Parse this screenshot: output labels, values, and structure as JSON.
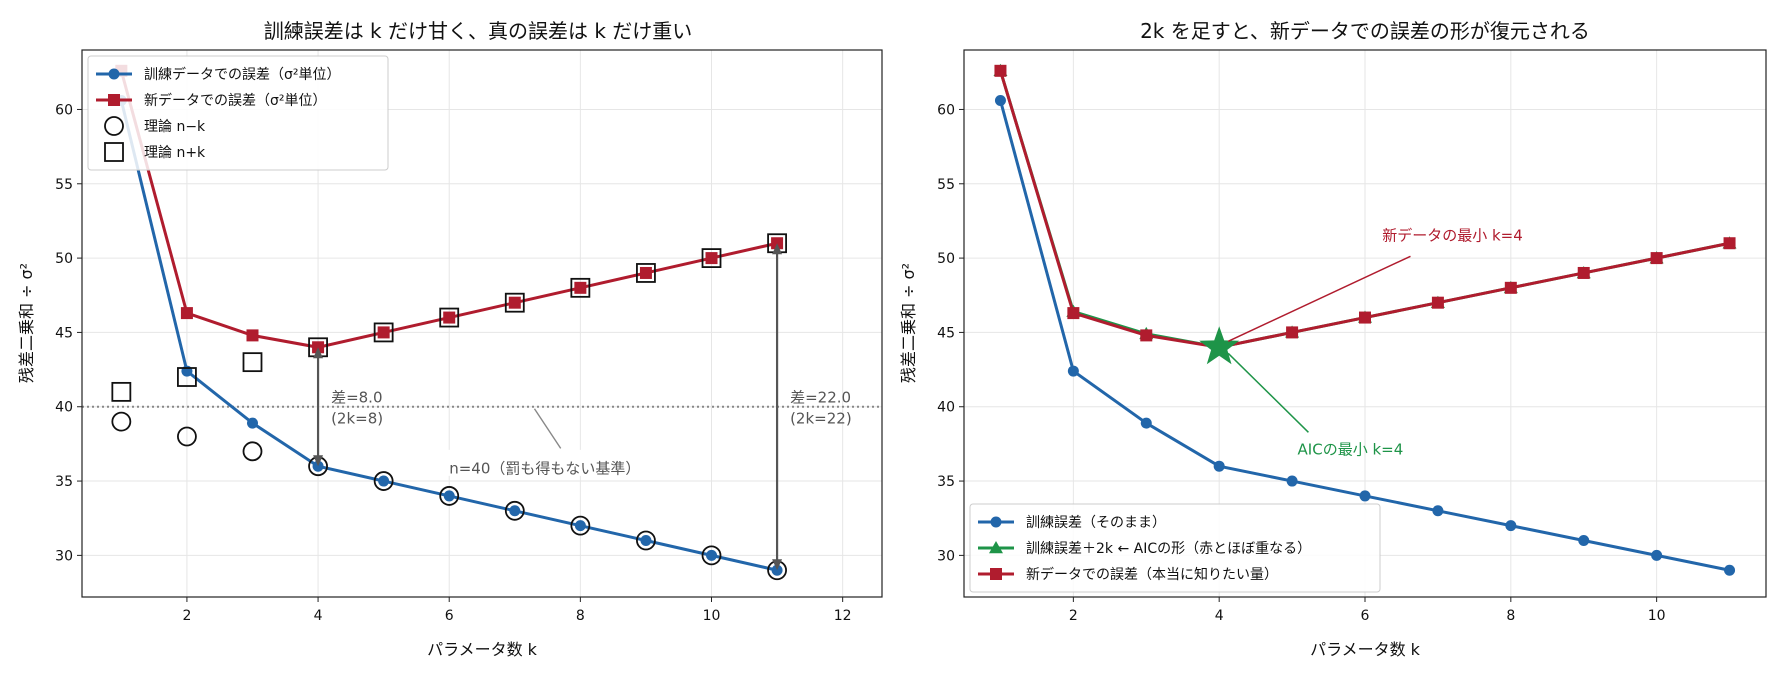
{
  "chart_data": [
    {
      "type": "line",
      "title": "訓練誤差は k だけ甘く、真の誤差は k だけ重い",
      "xlabel": "パラメータ数 k",
      "ylabel": "残差二乗和 ÷ σ²",
      "xlim": [
        0.4,
        12.6
      ],
      "ylim": [
        27.2,
        64.0
      ],
      "xticks": [
        2,
        4,
        6,
        8,
        10,
        12
      ],
      "yticks": [
        30,
        35,
        40,
        45,
        50,
        55,
        60
      ],
      "grid": true,
      "legend_position": "top-left",
      "x": [
        1,
        2,
        3,
        4,
        5,
        6,
        7,
        8,
        9,
        10,
        11
      ],
      "series": [
        {
          "name": "訓練データでの誤差（σ²単位）",
          "kind": "line-circle",
          "color": "#2266aa",
          "values": [
            60.6,
            42.4,
            38.9,
            36.0,
            35.0,
            34.0,
            33.0,
            32.0,
            31.0,
            30.0,
            29.0
          ]
        },
        {
          "name": "新データでの誤差（σ²単位）",
          "kind": "line-square",
          "color": "#b01c2e",
          "values": [
            62.6,
            46.3,
            44.8,
            44.0,
            45.0,
            46.0,
            47.0,
            48.0,
            49.0,
            50.0,
            51.0
          ]
        },
        {
          "name": "理論 n−k",
          "kind": "open-circle",
          "color": "#111111",
          "values": [
            39,
            38,
            37,
            36,
            35,
            34,
            33,
            32,
            31,
            30,
            29
          ]
        },
        {
          "name": "理論 n+k",
          "kind": "open-square",
          "color": "#111111",
          "values": [
            41,
            42,
            43,
            44,
            45,
            46,
            47,
            48,
            49,
            50,
            51
          ]
        }
      ],
      "reference_line": {
        "y": 40,
        "label": "n=40（罰も得もない基準）"
      },
      "annotations": [
        {
          "x": 4,
          "y_low": 36.0,
          "y_high": 44.0,
          "line1": "差=8.0",
          "line2": "(2k=8)"
        },
        {
          "x": 11,
          "y_low": 29.0,
          "y_high": 51.0,
          "line1": "差=22.0",
          "line2": "(2k=22)"
        }
      ]
    },
    {
      "type": "line",
      "title": "2k を足すと、新データでの誤差の形が復元される",
      "xlabel": "パラメータ数 k",
      "ylabel": "残差二乗和 ÷ σ²",
      "xlim": [
        0.5,
        11.5
      ],
      "ylim": [
        27.2,
        64.0
      ],
      "xticks": [
        2,
        4,
        6,
        8,
        10
      ],
      "yticks": [
        30,
        35,
        40,
        45,
        50,
        55,
        60
      ],
      "grid": true,
      "legend_position": "bottom-left",
      "x": [
        1,
        2,
        3,
        4,
        5,
        6,
        7,
        8,
        9,
        10,
        11
      ],
      "series": [
        {
          "name": "訓練誤差（そのまま）",
          "kind": "line-circle",
          "color": "#2266aa",
          "values": [
            60.6,
            42.4,
            38.9,
            36.0,
            35.0,
            34.0,
            33.0,
            32.0,
            31.0,
            30.0,
            29.0
          ]
        },
        {
          "name": "訓練誤差＋2k ← AICの形（赤とほぼ重なる）",
          "kind": "line-triangle",
          "color": "#1e9448",
          "values": [
            62.6,
            46.4,
            44.9,
            44.0,
            45.0,
            46.0,
            47.0,
            48.0,
            49.0,
            50.0,
            51.0
          ]
        },
        {
          "name": "新データでの誤差（本当に知りたい量）",
          "kind": "line-square",
          "color": "#b01c2e",
          "values": [
            62.6,
            46.3,
            44.8,
            44.0,
            45.0,
            46.0,
            47.0,
            48.0,
            49.0,
            50.0,
            51.0
          ]
        }
      ],
      "star": {
        "x": 4,
        "y": 44.0,
        "color": "#1e9448"
      },
      "annotations": [
        {
          "text": "新データの最小 k=4",
          "color": "#b01c2e",
          "text_x": 7.2,
          "text_y": 51.2,
          "target_x": 4,
          "target_y": 44.0
        },
        {
          "text": "AICの最小 k=4",
          "color": "#1e9448",
          "text_x": 5.8,
          "text_y": 36.8,
          "target_x": 4,
          "target_y": 44.0
        }
      ]
    }
  ]
}
